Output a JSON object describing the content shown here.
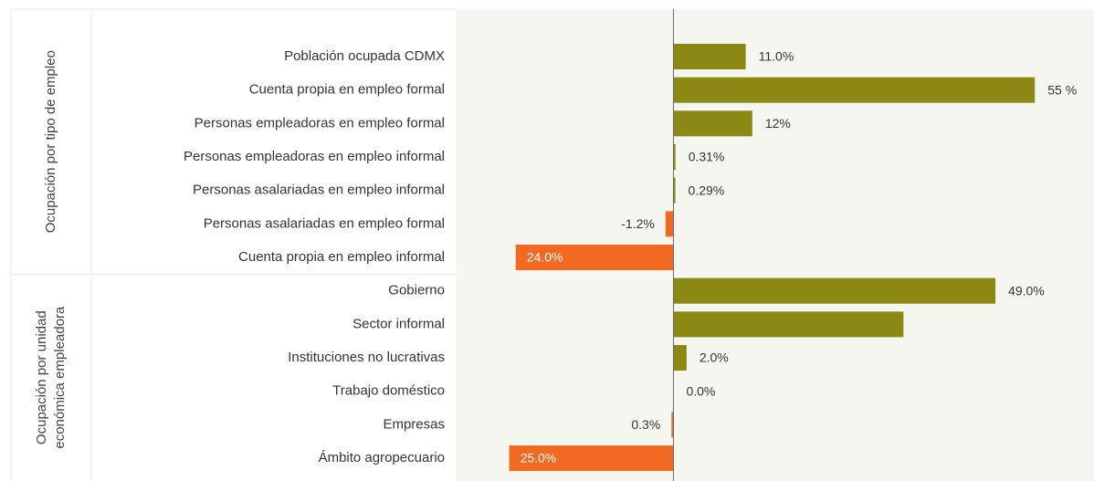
{
  "chart_data": {
    "type": "bar",
    "orientation": "horizontal",
    "positive_color": "#8b8914",
    "negative_color": "#f26a21",
    "xlim": [
      -33,
      64
    ],
    "groups": [
      {
        "name": [
          "Ocupación por tipo de empleo"
        ],
        "categories": [
          "Población ocupada CDMX",
          "Cuenta propia en empleo formal",
          "Personas empleadoras en empleo formal",
          "Personas empleadoras en empleo informal",
          "Personas asalariadas en empleo informal",
          "Personas asalariadas en empleo formal",
          "Cuenta propia en empleo informal"
        ],
        "values": [
          11.0,
          55,
          12,
          0.31,
          0.29,
          -1.2,
          -24.0
        ],
        "value_labels": [
          "11.0%",
          "55 %",
          "12%",
          "0.31%",
          "0.29%",
          "-1.2%",
          "24.0%"
        ]
      },
      {
        "name": [
          "Ocupación por unidad",
          "económica empleadora"
        ],
        "categories": [
          "Gobierno",
          "Sector informal",
          "Instituciones no lucrativas",
          "Trabajo doméstico",
          "Empresas",
          "Ámbito agropecuario"
        ],
        "values": [
          49.0,
          35,
          2.0,
          0.0,
          -0.3,
          -25.0
        ],
        "value_labels": [
          "49.0%",
          null,
          "2.0%",
          "0.0%",
          "0.3%",
          "25.0%"
        ]
      }
    ]
  }
}
